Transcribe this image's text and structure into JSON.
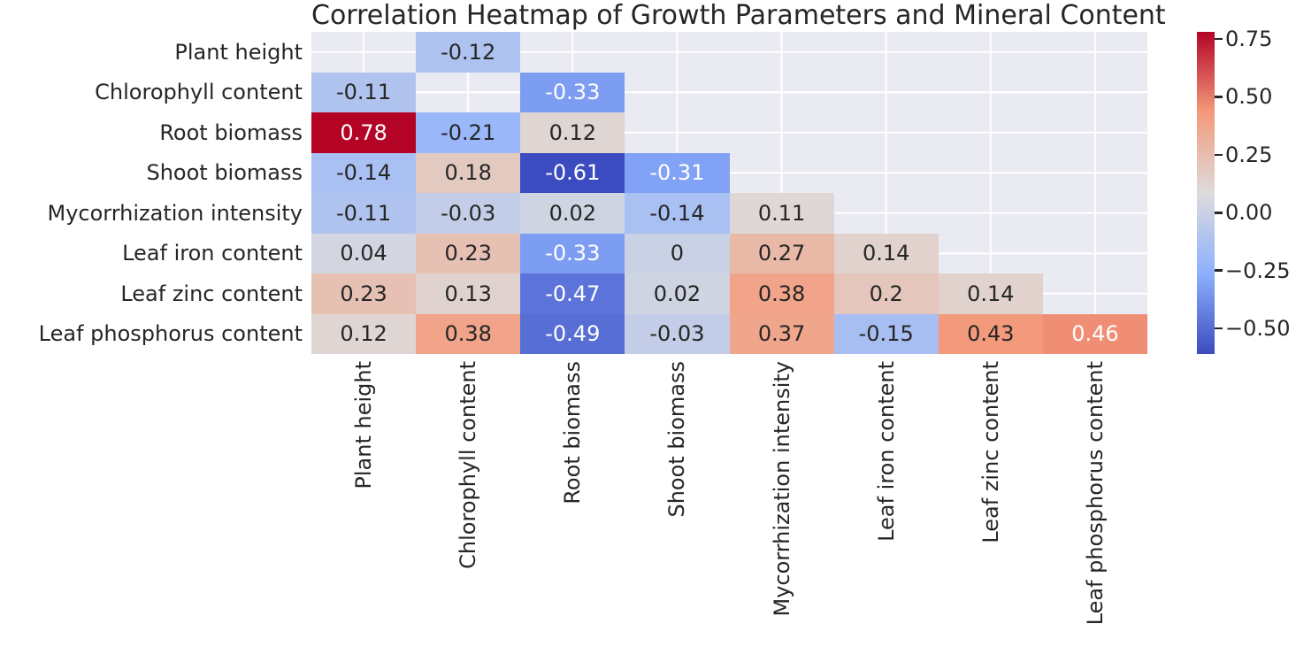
{
  "chart_data": {
    "type": "heatmap",
    "title": "Correlation Heatmap of Growth Parameters and Mineral Content",
    "x_categories": [
      "Plant height",
      "Chlorophyll content",
      "Root biomass",
      "Shoot biomass",
      "Mycorrhization intensity",
      "Leaf iron content",
      "Leaf zinc content",
      "Leaf phosphorus content"
    ],
    "y_categories": [
      "Plant height",
      "Chlorophyll content",
      "Root biomass",
      "Shoot biomass",
      "Mycorrhization intensity",
      "Leaf iron content",
      "Leaf zinc content",
      "Leaf phosphorus content"
    ],
    "matrix": [
      [
        null,
        -0.12,
        null,
        null,
        null,
        null,
        null,
        null
      ],
      [
        -0.11,
        null,
        -0.33,
        null,
        null,
        null,
        null,
        null
      ],
      [
        0.78,
        -0.21,
        0.12,
        null,
        null,
        null,
        null,
        null
      ],
      [
        -0.14,
        0.18,
        -0.61,
        -0.31,
        null,
        null,
        null,
        null
      ],
      [
        -0.11,
        -0.03,
        0.02,
        -0.14,
        0.11,
        null,
        null,
        null
      ],
      [
        0.04,
        0.23,
        -0.33,
        0,
        0.27,
        0.14,
        null,
        null
      ],
      [
        0.23,
        0.13,
        -0.47,
        0.02,
        0.38,
        0.2,
        0.14,
        null
      ],
      [
        0.12,
        0.38,
        -0.49,
        -0.03,
        0.37,
        -0.15,
        0.43,
        0.46
      ]
    ],
    "annotations": [
      [
        null,
        "-0.12",
        null,
        null,
        null,
        null,
        null,
        null
      ],
      [
        "-0.11",
        null,
        "-0.33",
        null,
        null,
        null,
        null,
        null
      ],
      [
        "0.78",
        "-0.21",
        "0.12",
        null,
        null,
        null,
        null,
        null
      ],
      [
        "-0.14",
        "0.18",
        "-0.61",
        "-0.31",
        null,
        null,
        null,
        null
      ],
      [
        "-0.11",
        "-0.03",
        "0.02",
        "-0.14",
        "0.11",
        null,
        null,
        null
      ],
      [
        "0.04",
        "0.23",
        "-0.33",
        "0",
        "0.27",
        "0.14",
        null,
        null
      ],
      [
        "0.23",
        "0.13",
        "-0.47",
        "0.02",
        "0.38",
        "0.2",
        "0.14",
        null
      ],
      [
        "0.12",
        "0.38",
        "-0.49",
        "-0.03",
        "0.37",
        "-0.15",
        "0.43",
        "0.46"
      ]
    ],
    "vmin": -0.61,
    "vmax": 0.78,
    "colormap": {
      "name": "coolwarm",
      "stops": [
        {
          "t": 0.0,
          "color": "#3b4cc0"
        },
        {
          "t": 0.25,
          "color": "#8db0fe"
        },
        {
          "t": 0.5,
          "color": "#dddcdc"
        },
        {
          "t": 0.75,
          "color": "#f49a7b"
        },
        {
          "t": 1.0,
          "color": "#b40426"
        }
      ]
    },
    "colorbar": {
      "ticks": [
        {
          "value": 0.75,
          "label": "0.75"
        },
        {
          "value": 0.5,
          "label": "0.50"
        },
        {
          "value": 0.25,
          "label": "0.25"
        },
        {
          "value": 0.0,
          "label": "0.00"
        },
        {
          "value": -0.25,
          "label": "−0.25"
        },
        {
          "value": -0.5,
          "label": "−0.50"
        }
      ]
    },
    "style": {
      "masked_background": "#eaeaf2",
      "grid_color": "#ffffff",
      "text_dark": "#262626",
      "text_light": "#ffffff",
      "luminance_threshold": 0.408
    },
    "layout_hints": {
      "x_tick_rotation": 90,
      "grid": "darkgrid-centers",
      "legend": "colorbar-right",
      "mask": "upper-region-hidden"
    }
  }
}
